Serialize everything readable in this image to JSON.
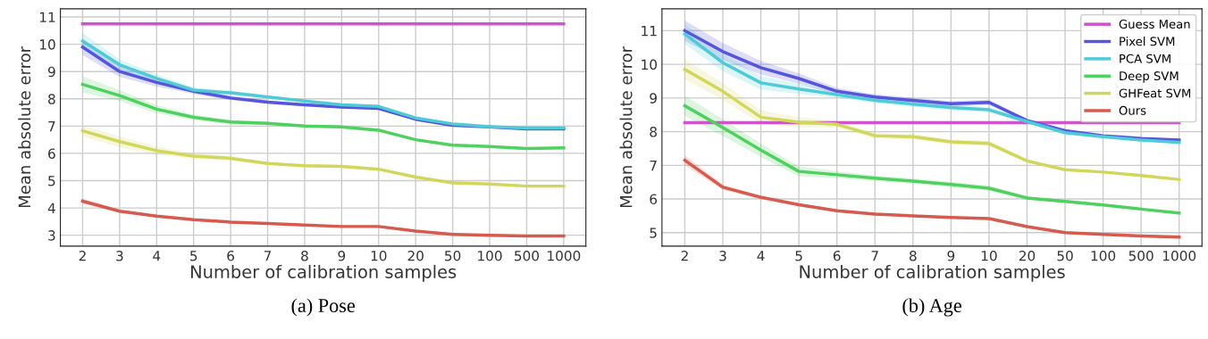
{
  "chart_data": [
    {
      "type": "line",
      "xlabel": "Number of calibration samples",
      "ylabel": "Mean absolute error",
      "categories": [
        "2",
        "3",
        "4",
        "5",
        "6",
        "7",
        "8",
        "9",
        "10",
        "20",
        "50",
        "100",
        "500",
        "1000"
      ],
      "ylim": [
        2.6,
        11.3
      ],
      "yticks": [
        3,
        4,
        5,
        6,
        7,
        8,
        9,
        10,
        11
      ],
      "grid": true,
      "annotations": [
        "(a) Pose"
      ],
      "series": [
        {
          "color": "#cc55cc",
          "values": [
            10.75,
            10.75,
            10.75,
            10.75,
            10.75,
            10.75,
            10.75,
            10.75,
            10.75,
            10.75,
            10.75,
            10.75,
            10.75,
            10.75
          ]
        },
        {
          "color": "#5555dd",
          "values": [
            9.9,
            9.0,
            8.6,
            8.28,
            8.03,
            7.88,
            7.78,
            7.7,
            7.65,
            7.25,
            7.03,
            6.97,
            6.9,
            6.9
          ],
          "lower": [
            9.6,
            8.8,
            8.45,
            8.18,
            7.95,
            7.82,
            7.73,
            7.65,
            7.6,
            7.21,
            6.99,
            6.94,
            6.87,
            6.87
          ],
          "upper": [
            10.2,
            9.2,
            8.75,
            8.38,
            8.11,
            7.94,
            7.83,
            7.75,
            7.7,
            7.29,
            7.07,
            7.0,
            6.93,
            6.93
          ]
        },
        {
          "color": "#4ecbd6",
          "values": [
            10.12,
            9.25,
            8.75,
            8.32,
            8.22,
            8.07,
            7.92,
            7.78,
            7.72,
            7.3,
            7.08,
            6.98,
            6.93,
            6.93
          ],
          "lower": [
            9.82,
            9.05,
            8.6,
            8.22,
            8.14,
            8.01,
            7.87,
            7.73,
            7.67,
            7.26,
            7.04,
            6.95,
            6.9,
            6.9
          ],
          "upper": [
            10.42,
            9.45,
            8.9,
            8.42,
            8.3,
            8.13,
            7.97,
            7.83,
            7.77,
            7.34,
            7.12,
            7.01,
            6.96,
            6.96
          ]
        },
        {
          "color": "#4ed15e",
          "values": [
            8.53,
            8.12,
            7.62,
            7.32,
            7.15,
            7.1,
            7.0,
            6.97,
            6.85,
            6.5,
            6.3,
            6.25,
            6.18,
            6.2
          ],
          "lower": [
            8.23,
            7.92,
            7.47,
            7.22,
            7.07,
            7.04,
            6.95,
            6.92,
            6.8,
            6.46,
            6.26,
            6.22,
            6.15,
            6.17
          ],
          "upper": [
            8.83,
            8.32,
            7.77,
            7.42,
            7.23,
            7.16,
            7.05,
            7.02,
            6.9,
            6.54,
            6.34,
            6.28,
            6.21,
            6.23
          ]
        },
        {
          "color": "#d1d75a",
          "values": [
            6.83,
            6.43,
            6.1,
            5.9,
            5.82,
            5.63,
            5.55,
            5.52,
            5.42,
            5.13,
            4.92,
            4.88,
            4.8,
            4.8
          ],
          "lower": [
            6.63,
            6.23,
            5.95,
            5.8,
            5.74,
            5.57,
            5.5,
            5.47,
            5.37,
            5.09,
            4.88,
            4.85,
            4.77,
            4.77
          ],
          "upper": [
            7.03,
            6.63,
            6.25,
            6.0,
            5.9,
            5.69,
            5.6,
            5.57,
            5.47,
            5.17,
            4.96,
            4.91,
            4.83,
            4.83
          ]
        },
        {
          "color": "#d65a4e",
          "values": [
            4.25,
            3.88,
            3.7,
            3.57,
            3.48,
            3.43,
            3.37,
            3.32,
            3.32,
            3.15,
            3.03,
            3.0,
            2.97,
            2.97
          ],
          "lower": [
            4.15,
            3.83,
            3.66,
            3.54,
            3.45,
            3.4,
            3.34,
            3.29,
            3.29,
            3.12,
            3.0,
            2.97,
            2.94,
            2.94
          ],
          "upper": [
            4.35,
            3.93,
            3.74,
            3.6,
            3.51,
            3.46,
            3.4,
            3.35,
            3.35,
            3.18,
            3.06,
            3.03,
            3.0,
            3.0
          ]
        }
      ]
    },
    {
      "type": "line",
      "xlabel": "Number of calibration samples",
      "ylabel": "Mean absolute error",
      "categories": [
        "2",
        "3",
        "4",
        "5",
        "6",
        "7",
        "8",
        "9",
        "10",
        "20",
        "50",
        "100",
        "500",
        "1000"
      ],
      "ylim": [
        4.6,
        11.65
      ],
      "yticks": [
        5,
        6,
        7,
        8,
        9,
        10,
        11
      ],
      "grid": true,
      "legend": "top right",
      "annotations": [
        "(b) Age"
      ],
      "series": [
        {
          "name": "Guess Mean",
          "color": "#cc55cc",
          "values": [
            8.27,
            8.27,
            8.27,
            8.27,
            8.27,
            8.27,
            8.27,
            8.27,
            8.27,
            8.27,
            8.27,
            8.27,
            8.27,
            8.27
          ]
        },
        {
          "name": "Pixel SVM",
          "color": "#5555dd",
          "values": [
            11.0,
            10.38,
            9.9,
            9.58,
            9.2,
            9.03,
            8.93,
            8.83,
            8.87,
            8.33,
            8.03,
            7.88,
            7.8,
            7.75
          ],
          "lower": [
            10.7,
            10.13,
            9.7,
            9.43,
            9.1,
            8.95,
            8.85,
            8.75,
            8.79,
            8.28,
            7.99,
            7.85,
            7.77,
            7.72
          ],
          "upper": [
            11.3,
            10.63,
            10.1,
            9.73,
            9.3,
            9.11,
            9.01,
            8.91,
            8.95,
            8.38,
            8.07,
            7.91,
            7.83,
            7.78
          ]
        },
        {
          "name": "PCA SVM",
          "color": "#4ecbd6",
          "values": [
            10.9,
            10.05,
            9.45,
            9.27,
            9.1,
            8.93,
            8.82,
            8.72,
            8.65,
            8.3,
            7.97,
            7.85,
            7.75,
            7.68
          ],
          "lower": [
            10.6,
            9.8,
            9.25,
            9.12,
            9.0,
            8.85,
            8.74,
            8.64,
            8.57,
            8.25,
            7.93,
            7.82,
            7.72,
            7.65
          ],
          "upper": [
            11.2,
            10.3,
            9.65,
            9.42,
            9.2,
            9.01,
            8.9,
            8.8,
            8.73,
            8.35,
            8.01,
            7.88,
            7.78,
            7.71
          ]
        },
        {
          "name": "Deep SVM",
          "color": "#4ed15e",
          "values": [
            8.77,
            8.12,
            7.45,
            6.82,
            6.72,
            6.62,
            6.53,
            6.43,
            6.32,
            6.03,
            5.93,
            5.82,
            5.7,
            5.58
          ],
          "lower": [
            8.47,
            7.87,
            7.25,
            6.67,
            6.62,
            6.54,
            6.45,
            6.35,
            6.24,
            5.98,
            5.89,
            5.79,
            5.67,
            5.55
          ],
          "upper": [
            9.07,
            8.37,
            7.65,
            6.97,
            6.82,
            6.7,
            6.61,
            6.51,
            6.4,
            6.08,
            5.97,
            5.85,
            5.73,
            5.61
          ]
        },
        {
          "name": "GHFeat SVM",
          "color": "#d1d75a",
          "values": [
            9.85,
            9.2,
            8.43,
            8.28,
            8.22,
            7.88,
            7.85,
            7.7,
            7.65,
            7.13,
            6.87,
            6.8,
            6.7,
            6.58
          ],
          "lower": [
            9.55,
            8.95,
            8.23,
            8.13,
            8.12,
            7.8,
            7.77,
            7.62,
            7.57,
            7.08,
            6.83,
            6.77,
            6.67,
            6.55
          ],
          "upper": [
            10.15,
            9.45,
            8.63,
            8.43,
            8.32,
            7.96,
            7.93,
            7.78,
            7.73,
            7.18,
            6.91,
            6.83,
            6.73,
            6.61
          ]
        },
        {
          "name": "Ours",
          "color": "#d65a4e",
          "values": [
            7.15,
            6.35,
            6.05,
            5.83,
            5.65,
            5.55,
            5.5,
            5.45,
            5.42,
            5.18,
            5.0,
            4.95,
            4.9,
            4.87
          ],
          "lower": [
            7.0,
            6.27,
            5.99,
            5.78,
            5.61,
            5.51,
            5.47,
            5.42,
            5.39,
            5.15,
            4.97,
            4.92,
            4.87,
            4.84
          ],
          "upper": [
            7.3,
            6.43,
            6.11,
            5.88,
            5.69,
            5.59,
            5.53,
            5.48,
            5.45,
            5.21,
            5.03,
            4.98,
            4.93,
            4.9
          ]
        }
      ]
    }
  ]
}
